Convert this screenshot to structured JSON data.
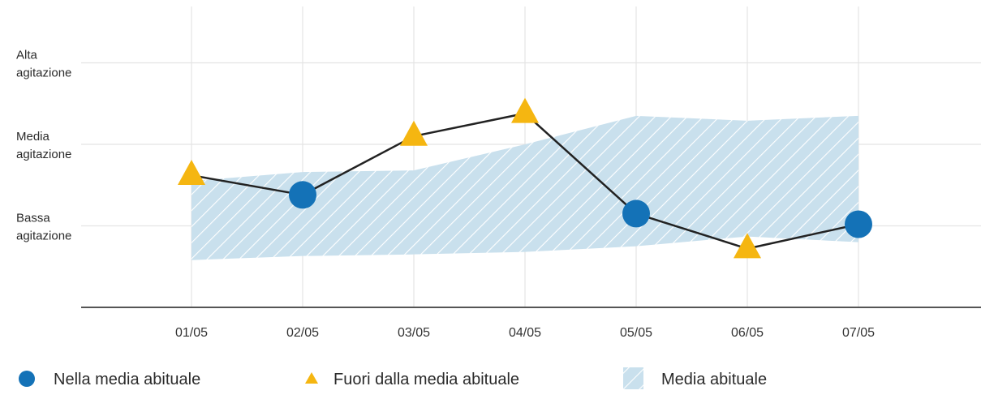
{
  "chart_data": {
    "type": "line",
    "title": "",
    "xlabel": "",
    "ylabel": "",
    "categories": [
      "01/05",
      "02/05",
      "03/05",
      "04/05",
      "05/05",
      "06/05",
      "07/05"
    ],
    "y_levels": [
      {
        "value": 3,
        "lines": [
          "Alta",
          "agitazione"
        ]
      },
      {
        "value": 2,
        "lines": [
          "Media",
          "agitazione"
        ]
      },
      {
        "value": 1,
        "lines": [
          "Bassa",
          "agitazione"
        ]
      }
    ],
    "ylim": [
      0,
      3.7
    ],
    "grid": true,
    "series": [
      {
        "name": "Agitazione",
        "values": [
          1.62,
          1.38,
          2.1,
          2.38,
          1.15,
          0.72,
          1.02
        ],
        "status": [
          "fuori",
          "nella",
          "fuori",
          "fuori",
          "nella",
          "fuori",
          "nella"
        ]
      }
    ],
    "band": {
      "name": "Media abituale",
      "low": [
        0.58,
        0.63,
        0.65,
        0.68,
        0.75,
        0.87,
        0.8
      ],
      "high": [
        1.55,
        1.66,
        1.68,
        2.0,
        2.35,
        2.29,
        2.35
      ]
    },
    "legend": {
      "placement": "bottom",
      "items": [
        {
          "label": "Nella media abituale",
          "marker": "circle"
        },
        {
          "label": "Fuori dalla media abituale",
          "marker": "triangle"
        },
        {
          "label": "Media abituale",
          "marker": "hatch"
        }
      ]
    },
    "colors": {
      "circle": "#1472b7",
      "triangle": "#f5b611",
      "line": "#222222",
      "band_fill": "#c9e0ed",
      "hatch": "#ffffff",
      "grid": "#e4e4e4",
      "axis": "#555555"
    }
  }
}
